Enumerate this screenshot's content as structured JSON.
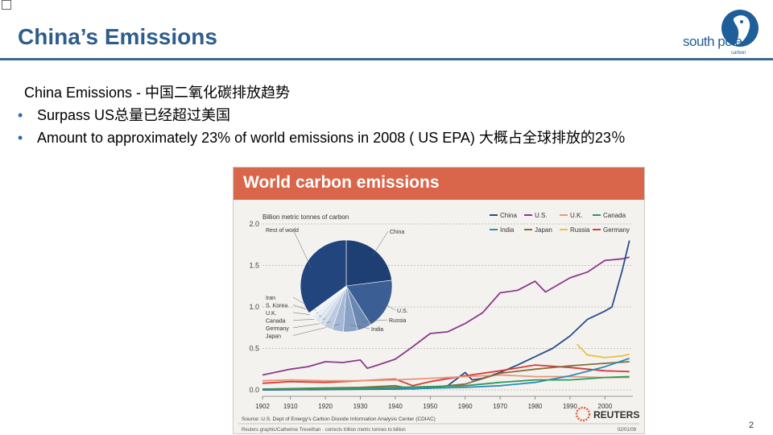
{
  "slide": {
    "title": "China’s Emissions",
    "page_number": "2",
    "logo": {
      "name": "south pole",
      "sub": "carbon"
    }
  },
  "content": {
    "lead": "China Emissions  - 中国二氧化碳排放趋势",
    "bullets": [
      "Surpass US总量已经超过美国",
      "Amount to approximately 23% of world emissions in 2008 ( US EPA) 大概占全球排放的23％"
    ]
  },
  "chart_data": {
    "type": "line",
    "title": "World carbon emissions",
    "ylabel": "Billion metric tonnes of carbon",
    "ylim": [
      0,
      2.0
    ],
    "y_ticks": [
      "2.0",
      "1.5",
      "1.0",
      "0.5",
      "0.0"
    ],
    "x_ticks": [
      "1902",
      "1910",
      "1920",
      "1930",
      "1940",
      "1950",
      "1960",
      "1970",
      "1980",
      "1990",
      "2000"
    ],
    "legend": [
      "China",
      "U.S.",
      "U.K.",
      "Canada",
      "India",
      "Japan",
      "Russia",
      "Germany"
    ],
    "colors": {
      "China": "#2a4d8a",
      "U.S.": "#8b3a8b",
      "U.K.": "#e8967a",
      "Canada": "#2e9a5a",
      "India": "#2a8cb8",
      "Japan": "#8a6a3a",
      "Russia": "#e6c24a",
      "Germany": "#d83a3a"
    },
    "series": [
      {
        "name": "U.S.",
        "x": [
          1902,
          1910,
          1915,
          1920,
          1925,
          1930,
          1932,
          1935,
          1940,
          1945,
          1950,
          1955,
          1960,
          1965,
          1970,
          1975,
          1980,
          1983,
          1990,
          1995,
          2000,
          2005,
          2007
        ],
        "y": [
          0.18,
          0.25,
          0.28,
          0.34,
          0.33,
          0.36,
          0.26,
          0.3,
          0.37,
          0.52,
          0.68,
          0.7,
          0.8,
          0.93,
          1.17,
          1.2,
          1.31,
          1.18,
          1.35,
          1.42,
          1.56,
          1.58,
          1.6
        ]
      },
      {
        "name": "China",
        "x": [
          1902,
          1940,
          1950,
          1955,
          1960,
          1962,
          1965,
          1970,
          1975,
          1980,
          1985,
          1990,
          1995,
          2000,
          2002,
          2005,
          2007
        ],
        "y": [
          0.0,
          0.01,
          0.02,
          0.05,
          0.21,
          0.12,
          0.14,
          0.21,
          0.3,
          0.4,
          0.5,
          0.65,
          0.85,
          0.95,
          1.0,
          1.45,
          1.8
        ]
      },
      {
        "name": "Russia",
        "x": [
          1992,
          1995,
          2000,
          2005,
          2007
        ],
        "y": [
          0.55,
          0.42,
          0.39,
          0.41,
          0.43
        ]
      },
      {
        "name": "Germany",
        "x": [
          1902,
          1910,
          1920,
          1930,
          1940,
          1945,
          1950,
          1960,
          1970,
          1980,
          1990,
          2000,
          2007
        ],
        "y": [
          0.08,
          0.1,
          0.09,
          0.11,
          0.13,
          0.05,
          0.1,
          0.17,
          0.23,
          0.3,
          0.27,
          0.23,
          0.22
        ]
      },
      {
        "name": "U.K.",
        "x": [
          1902,
          1910,
          1920,
          1930,
          1940,
          1950,
          1960,
          1970,
          1980,
          1990,
          2000,
          2007
        ],
        "y": [
          0.11,
          0.12,
          0.11,
          0.11,
          0.12,
          0.14,
          0.16,
          0.18,
          0.16,
          0.16,
          0.15,
          0.15
        ]
      },
      {
        "name": "Japan",
        "x": [
          1902,
          1930,
          1940,
          1945,
          1950,
          1960,
          1970,
          1980,
          1990,
          2000,
          2007
        ],
        "y": [
          0.01,
          0.03,
          0.05,
          0.01,
          0.03,
          0.07,
          0.2,
          0.25,
          0.29,
          0.32,
          0.34
        ]
      },
      {
        "name": "India",
        "x": [
          1902,
          1930,
          1950,
          1960,
          1970,
          1980,
          1990,
          2000,
          2007
        ],
        "y": [
          0.01,
          0.01,
          0.02,
          0.03,
          0.05,
          0.09,
          0.17,
          0.28,
          0.38
        ]
      },
      {
        "name": "Canada",
        "x": [
          1902,
          1930,
          1950,
          1960,
          1970,
          1980,
          1990,
          2000,
          2007
        ],
        "y": [
          0.01,
          0.02,
          0.04,
          0.05,
          0.09,
          0.12,
          0.12,
          0.15,
          0.16
        ]
      }
    ],
    "pie": {
      "labels": [
        "China",
        "U.S.",
        "Russia",
        "India",
        "Japan",
        "Germany",
        "Canada",
        "U.K.",
        "S. Korea",
        "Iran",
        "Rest of world"
      ],
      "values": [
        23,
        18,
        5,
        5,
        4,
        3,
        2,
        2,
        1.5,
        1.5,
        35
      ]
    },
    "source": "Source: U.S. Dept of Energy's Carbon Dioxide Information Analysis Center (CDIAC)",
    "credit": "Reuters graphic/Catherine Trevethan · corrects trillion metric tonnes to billion",
    "date": "02/01/09",
    "brand": "REUTERS"
  }
}
